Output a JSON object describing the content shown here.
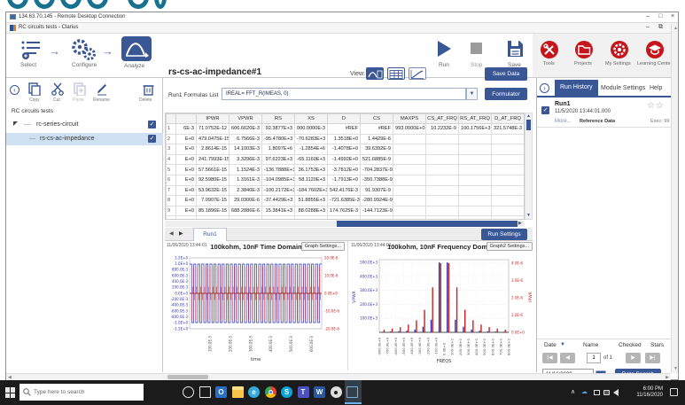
{
  "window": {
    "rdp_title": "134.63.70.145 - Remote Desktop Connection",
    "app_title": "RC circuits tests - Clarius"
  },
  "workflow": {
    "select": "Select",
    "configure": "Configure",
    "analyze": "Analyze"
  },
  "run_controls": {
    "run": "Run",
    "stop": "Stop",
    "save": "Save"
  },
  "global_nav": {
    "tools": "Tools",
    "projects": "Projects",
    "my_settings": "My Settings",
    "learning_center": "Learning Center"
  },
  "sidebar": {
    "toolbar": {
      "copy": "Copy",
      "cut": "Cut",
      "paste": "Paste",
      "rename": "Rename",
      "delete": "Delete"
    },
    "project_label": "RC circuits tests",
    "tree": [
      {
        "label": "rc-series-circuit",
        "checked": true
      },
      {
        "label": "rs-cs-ac-impedance",
        "checked": true,
        "selected": true
      }
    ]
  },
  "main": {
    "test_title": "rs-cs-ac-impedance#1",
    "view_label": "View:",
    "save_data": "Save Data",
    "formulas_label": "Run1 Formulas List",
    "formula_value": "IREAL= FFT_R(IMEAS, 0)",
    "formulator": "Formulator",
    "run_tab": "Run1",
    "run_settings": "Run Settings",
    "table": {
      "columns": [
        "",
        "",
        "IPWR",
        "VPWR",
        "RS",
        "XS",
        "D",
        "CS",
        "MAXPS",
        "CS_AT_FRQ",
        "RS_AT_FRQ",
        "D_AT_FRQ"
      ],
      "rows": [
        [
          "1",
          "6E-3",
          "71.0752E-12",
          "606.6620E-3",
          "92.3877E+3",
          "000.0000E-3",
          "#REF",
          "#REF",
          "993.0000E+0",
          "10.2232E-9",
          "100.1756E+3",
          "321.5748E-3"
        ],
        [
          "2",
          "E+0",
          "479.0475E-15",
          "6.7566E-3",
          "-95.4780E+3",
          "-70.6283E+3",
          "1.3518E+0",
          "1.4429E-6",
          "",
          "",
          "",
          ""
        ],
        [
          "3",
          "E+0",
          "2.8614E-15",
          "14.1003E-3",
          "1.8097E+6",
          "-1.2854E+6",
          "-1.4078E+0",
          "39.6392E-9",
          "",
          "",
          "",
          ""
        ],
        [
          "4",
          "E+0",
          "241.7993E-15",
          "3.3296E-3",
          "97.6223E+3",
          "-65.1160E+3",
          "-1.4992E+0",
          "521.6885E-9",
          "",
          "",
          "",
          ""
        ],
        [
          "5",
          "E+0",
          "57.5661E-15",
          "1.1524E-3",
          "-136.7888E+3",
          "36.1753E+3",
          "-3.7812E+0",
          "-704.2837E-9",
          "",
          "",
          "",
          ""
        ],
        [
          "6",
          "E+0",
          "92.5980E-15",
          "1.3161E-3",
          "-104.0985E+3",
          "58.1120E+3",
          "-1.7913E+0",
          "-350.7388E-9",
          "",
          "",
          "",
          ""
        ],
        [
          "7",
          "E+0",
          "53.9632E-15",
          "2.3840E-3",
          "-100.2172E+3",
          "-184.7602E+3",
          "542.4176E-3",
          "91.9307E-9",
          "",
          "",
          "",
          ""
        ],
        [
          "8",
          "E+0",
          "7.0907E-15",
          "29.0300E-6",
          "-37.4429E+3",
          "51.8855E+3",
          "-721.6385E-3",
          "-280.9924E-9",
          "",
          "",
          "",
          ""
        ],
        [
          "9",
          "E+0",
          "85.1896E-15",
          "688.2886E-6",
          "15.3841E+3",
          "88.0288E+3",
          "174.7625E-3",
          "-144.7123E-9",
          "",
          "",
          "",
          ""
        ],
        [
          "10",
          "E+0",
          "55.7777E-15",
          "2.3152E-3",
          "-99.7854E+3",
          "-184.2635E+3",
          "478.4721E-3",
          "-61.4654E-9",
          "",
          "",
          "",
          ""
        ]
      ]
    }
  },
  "chart_data": [
    {
      "type": "line",
      "title": "100kohm, 10nF Time Domain",
      "timestamp": "11/06/2020 13:44:01",
      "settings_label": "Graph Settings...",
      "xlabel": "time",
      "x_range_s": [
        0,
        0.65
      ],
      "x_tick_labels": [
        "100.0E-3",
        "200.0E-3",
        "300.0E-3",
        "400.0E-3",
        "500.0E-3",
        "600.0E-3"
      ],
      "left_axis": {
        "color": "#2f2fb0",
        "range": [
          -1.2,
          1.2
        ],
        "ticks": [
          "1.2E+0",
          "1.0E+0",
          "800.0E-3",
          "600.0E-3",
          "400.0E-3",
          "200.0E-3",
          "0.0E+0",
          "-200.0E-3",
          "-400.0E-3",
          "-600.0E-3",
          "-800.0E-3",
          "-1.0E+0",
          "-1.2E+0"
        ]
      },
      "right_axis": {
        "color": "#cc2020",
        "range": [
          -2e-05,
          2e-05
        ],
        "ticks": [
          "20.0E-6",
          "10.0E-6",
          "0.0E+0",
          "-10.0E-6",
          "-20.0E-6"
        ]
      },
      "series": [
        {
          "name": "VPWR",
          "color": "#2f2fb0",
          "waveform": "square",
          "amplitude": 1.0,
          "period_s": 0.02
        },
        {
          "name": "IPWR",
          "color": "#cc2020",
          "waveform": "impulse-at-transitions",
          "amplitude": 1.5e-05,
          "period_s": 0.02
        }
      ],
      "grid": true,
      "legend_position": "none"
    },
    {
      "type": "stem",
      "title": "100kohm, 10nF Frequency Domain",
      "timestamp": "11/06/2020 13:44:01",
      "settings_label": "Graph2 Settings...",
      "xlabel": "FREQS",
      "ylabel_left": "VPWR",
      "ylabel_right": "IPWR",
      "x_range": [
        -800,
        800
      ],
      "x_tick_labels": [
        "-800.0E+0",
        "-700.0E+0",
        "-600.0E+0",
        "-500.0E+0",
        "-400.0E+0",
        "-300.0E+0",
        "-200.0E+0",
        "-100.0E+0",
        "0.0E+0",
        "100.0E+0",
        "200.0E+0",
        "300.0E+0",
        "400.0E+0",
        "500.0E+0",
        "600.0E+0",
        "700.0E+0",
        "800.0E+0"
      ],
      "left_axis": {
        "color": "#2f2fb0",
        "range": [
          0,
          520000
        ],
        "ticks": [
          "500.0E+3",
          "400.0E+3",
          "300.0E+3",
          "200.0E+3",
          "100.0E+3"
        ]
      },
      "right_axis": {
        "color": "#cc2020",
        "range": [
          0,
          4.2e-06
        ],
        "ticks": [
          "4.0E-6",
          "3.0E-6",
          "2.0E-6",
          "1.0E-6",
          "0.0E+0"
        ]
      },
      "stems": {
        "freqs": [
          -750,
          -650,
          -550,
          -450,
          -350,
          -250,
          -150,
          -50,
          50,
          150,
          250,
          350,
          450,
          550,
          650,
          750
        ],
        "vpwr_E3": [
          4,
          6,
          8,
          12,
          20,
          40,
          90,
          500,
          500,
          90,
          40,
          20,
          12,
          8,
          6,
          4
        ],
        "ipwr_E6": [
          0.15,
          0.22,
          0.3,
          0.45,
          0.7,
          1.3,
          2.6,
          4.0,
          4.0,
          2.6,
          1.3,
          0.7,
          0.45,
          0.3,
          0.22,
          0.15
        ]
      },
      "grid": true
    }
  ],
  "right_panel": {
    "tabs": {
      "run_history": "Run History",
      "module_settings": "Module Settings",
      "help": "Help"
    },
    "run_entry": {
      "name": "Run1",
      "timestamp": "11/5/2020 13:44:01.000",
      "more": "More...",
      "reference": "Reference Data",
      "exec": "Exec: 99",
      "stars": 2,
      "checked": true
    },
    "filter_headers": {
      "date": "Date",
      "name": "Name",
      "checked": "Checked",
      "stars": "Stars"
    },
    "pagination": {
      "page": "1",
      "of": "of 1"
    },
    "date_value": "11/16/2020",
    "data_search": "Data Search"
  },
  "taskbar": {
    "search_placeholder": "Type here to search",
    "apps": [
      {
        "name": "cortana",
        "shape": "ring",
        "color": "#e8e8e8",
        "glyph": ""
      },
      {
        "name": "task-view",
        "shape": "taskview",
        "color": "#e8e8e8",
        "glyph": ""
      },
      {
        "name": "outlook",
        "shape": "square",
        "color": "#2a6fc4",
        "glyph": "O"
      },
      {
        "name": "file-explorer",
        "shape": "folder",
        "color": "#f7c44d",
        "glyph": ""
      },
      {
        "name": "edge",
        "shape": "circle",
        "color": "#35aadc",
        "glyph": "e"
      },
      {
        "name": "chrome",
        "shape": "chrome",
        "color": "#e84335",
        "glyph": ""
      },
      {
        "name": "skype",
        "shape": "circle",
        "color": "#0aa4dc",
        "glyph": "S"
      },
      {
        "name": "teams",
        "shape": "square",
        "color": "#4b53bc",
        "glyph": "T"
      },
      {
        "name": "word",
        "shape": "square",
        "color": "#2b579a",
        "glyph": "W"
      },
      {
        "name": "settings",
        "shape": "gear",
        "color": "#dddddd",
        "glyph": ""
      },
      {
        "name": "remote-desktop",
        "shape": "monitor",
        "color": "#7ab0d4",
        "glyph": "",
        "active": true
      }
    ],
    "clock": {
      "time": "6:00 PM",
      "date": "11/16/2020"
    }
  }
}
